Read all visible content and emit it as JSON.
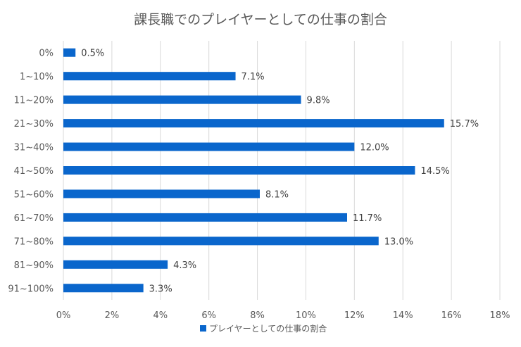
{
  "chart_data": {
    "type": "bar",
    "orientation": "horizontal",
    "title": "課長職でのプレイヤーとしての仕事の割合",
    "categories": [
      "0%",
      "1~10%",
      "11~20%",
      "21~30%",
      "31~40%",
      "41~50%",
      "51~60%",
      "61~70%",
      "71~80%",
      "81~90%",
      "91~100%"
    ],
    "series": [
      {
        "name": "プレイヤーとしての仕事の割合",
        "values": [
          0.5,
          7.1,
          9.8,
          15.7,
          12.0,
          14.5,
          8.1,
          11.7,
          13.0,
          4.3,
          3.3
        ],
        "labels": [
          "0.5%",
          "7.1%",
          "9.8%",
          "15.7%",
          "12.0%",
          "14.5%",
          "8.1%",
          "11.7%",
          "13.0%",
          "4.3%",
          "3.3%"
        ],
        "color": "#0a66cc"
      }
    ],
    "x_ticks": [
      "0%",
      "2%",
      "4%",
      "6%",
      "8%",
      "10%",
      "12%",
      "14%",
      "16%",
      "18%"
    ],
    "xlim": [
      0,
      18
    ],
    "grid": "vertical",
    "legend": "bottom"
  }
}
